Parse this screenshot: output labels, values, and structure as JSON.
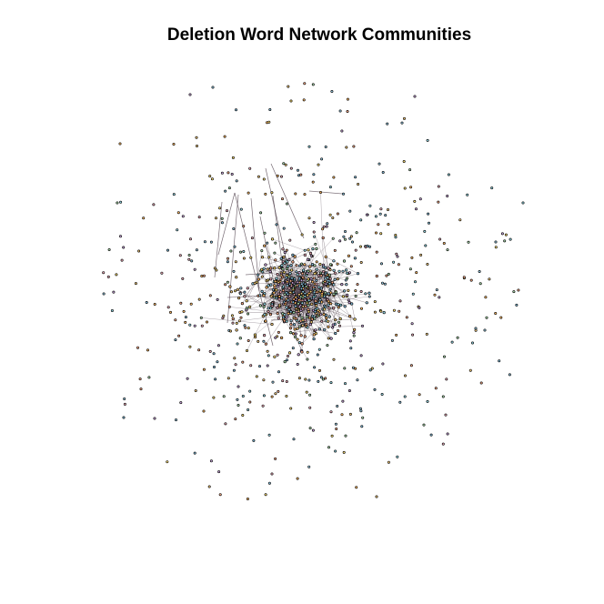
{
  "title": "Deletion Word Network Communities",
  "colors": {
    "background": "#ffffff",
    "edge": "#4a3a46",
    "node_border": "#000000",
    "community_palette": [
      "#8fd3e0",
      "#f2c879",
      "#e8a6b4",
      "#7fb8d6",
      "#f5d76e",
      "#c7a2d9",
      "#a5d6a7",
      "#f4a582",
      "#92c5de",
      "#fdb863"
    ]
  }
}
